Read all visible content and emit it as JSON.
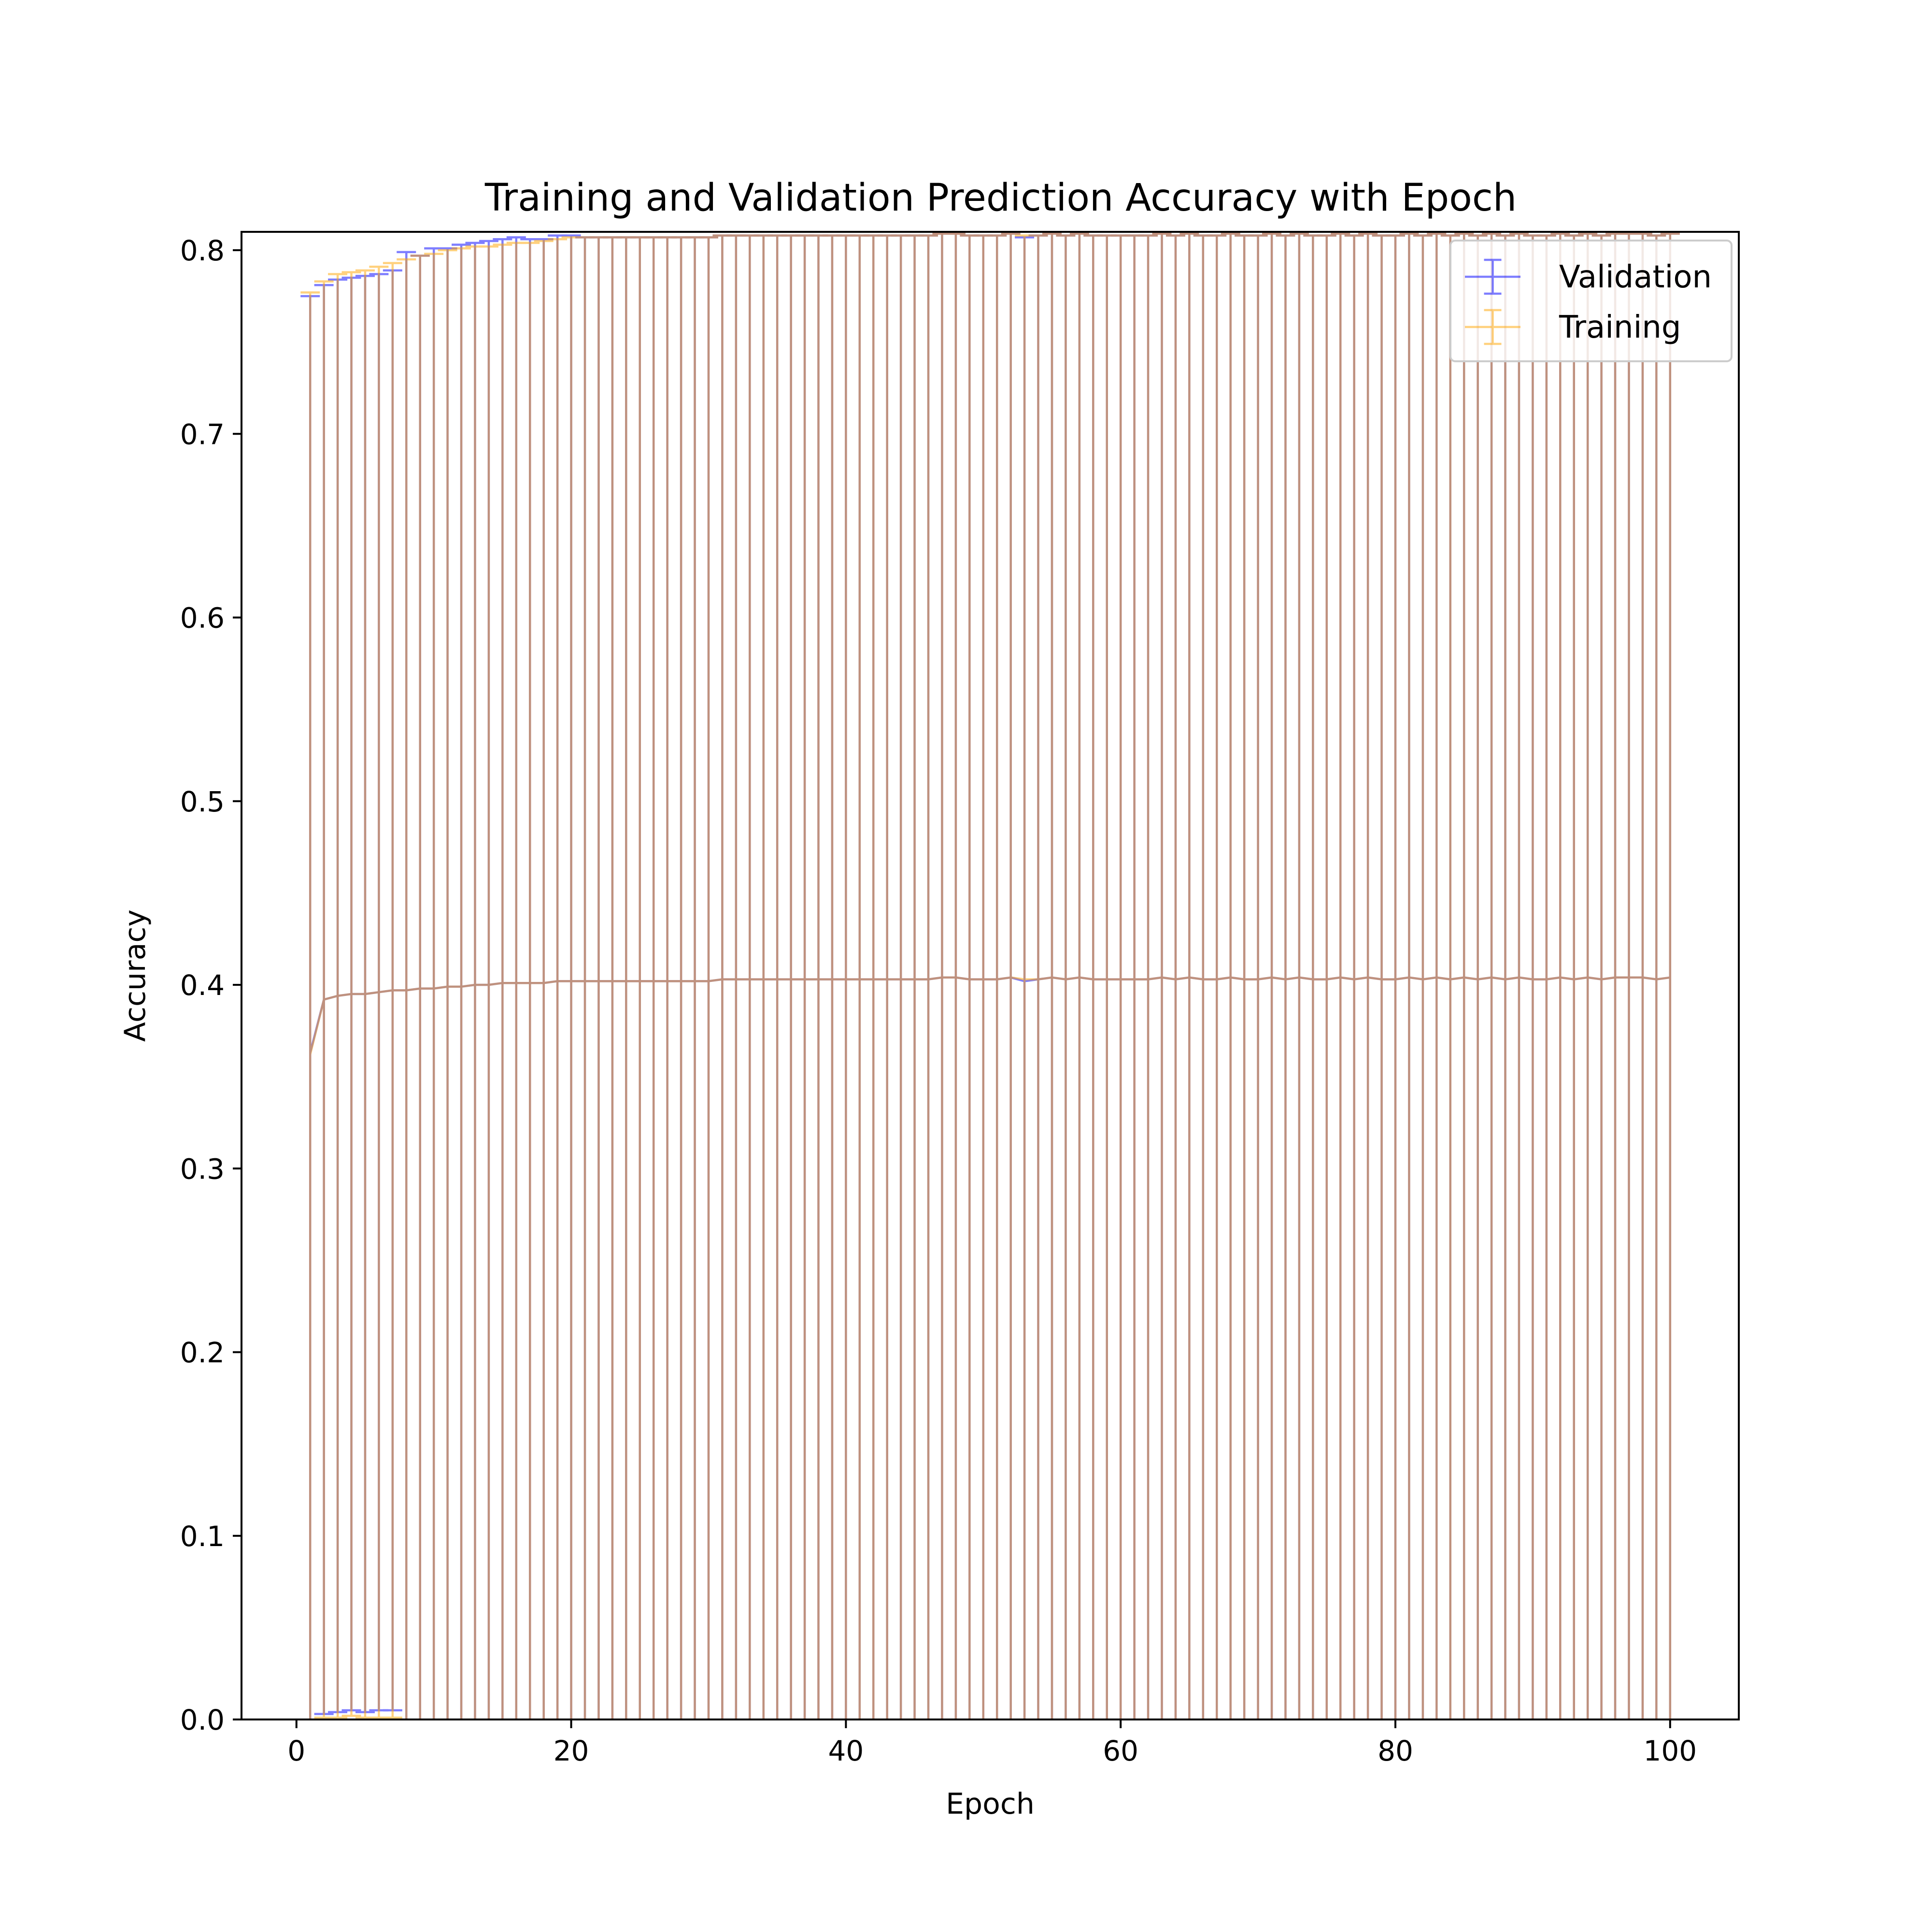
{
  "chart_data": {
    "type": "line",
    "title": "Training and Validation Prediction Accuracy with Epoch",
    "xlabel": "Epoch",
    "ylabel": "Accuracy",
    "xlim": [
      -4,
      105
    ],
    "ylim": [
      0.0,
      0.81
    ],
    "x_ticks": [
      "0",
      "20",
      "40",
      "60",
      "80",
      "100"
    ],
    "y_ticks": [
      "0.0",
      "0.1",
      "0.2",
      "0.3",
      "0.4",
      "0.5",
      "0.6",
      "0.7",
      "0.8"
    ],
    "grid": false,
    "legend_position": "top-right",
    "error_bars": true,
    "x": [
      1,
      2,
      3,
      4,
      5,
      6,
      7,
      8,
      9,
      10,
      11,
      12,
      13,
      14,
      15,
      16,
      17,
      18,
      19,
      20,
      21,
      22,
      23,
      24,
      25,
      26,
      27,
      28,
      29,
      30,
      31,
      32,
      33,
      34,
      35,
      36,
      37,
      38,
      39,
      40,
      41,
      42,
      43,
      44,
      45,
      46,
      47,
      48,
      49,
      50,
      51,
      52,
      53,
      54,
      55,
      56,
      57,
      58,
      59,
      60,
      61,
      62,
      63,
      64,
      65,
      66,
      67,
      68,
      69,
      70,
      71,
      72,
      73,
      74,
      75,
      76,
      77,
      78,
      79,
      80,
      81,
      82,
      83,
      84,
      85,
      86,
      87,
      88,
      89,
      90,
      91,
      92,
      93,
      94,
      95,
      96,
      97,
      98,
      99,
      100
    ],
    "series": [
      {
        "name": "Validation",
        "color": "#0000ff",
        "values": [
          0.363,
          0.392,
          0.394,
          0.395,
          0.395,
          0.396,
          0.397,
          0.397,
          0.398,
          0.398,
          0.399,
          0.399,
          0.4,
          0.4,
          0.401,
          0.401,
          0.401,
          0.401,
          0.402,
          0.402,
          0.402,
          0.402,
          0.402,
          0.402,
          0.402,
          0.402,
          0.402,
          0.402,
          0.402,
          0.402,
          0.403,
          0.403,
          0.403,
          0.403,
          0.403,
          0.403,
          0.403,
          0.403,
          0.403,
          0.403,
          0.403,
          0.403,
          0.403,
          0.403,
          0.403,
          0.403,
          0.404,
          0.404,
          0.403,
          0.403,
          0.403,
          0.404,
          0.402,
          0.403,
          0.404,
          0.403,
          0.404,
          0.403,
          0.403,
          0.403,
          0.403,
          0.403,
          0.404,
          0.403,
          0.404,
          0.403,
          0.403,
          0.404,
          0.403,
          0.403,
          0.404,
          0.403,
          0.404,
          0.403,
          0.403,
          0.404,
          0.403,
          0.404,
          0.403,
          0.403,
          0.404,
          0.403,
          0.404,
          0.403,
          0.404,
          0.403,
          0.404,
          0.403,
          0.404,
          0.403,
          0.403,
          0.404,
          0.403,
          0.404,
          0.403,
          0.404,
          0.404,
          0.404,
          0.403,
          0.404
        ],
        "errors": [
          0.412,
          0.389,
          0.39,
          0.39,
          0.391,
          0.391,
          0.392,
          0.402,
          0.399,
          0.403,
          0.402,
          0.404,
          0.404,
          0.405,
          0.405,
          0.406,
          0.405,
          0.405,
          0.406,
          0.406,
          0.405,
          0.405,
          0.405,
          0.405,
          0.405,
          0.405,
          0.405,
          0.405,
          0.405,
          0.405,
          0.405,
          0.405,
          0.405,
          0.405,
          0.405,
          0.405,
          0.405,
          0.405,
          0.405,
          0.405,
          0.405,
          0.405,
          0.405,
          0.405,
          0.405,
          0.405,
          0.405,
          0.405,
          0.405,
          0.405,
          0.405,
          0.405,
          0.405,
          0.405,
          0.405,
          0.405,
          0.405,
          0.405,
          0.405,
          0.405,
          0.405,
          0.405,
          0.405,
          0.405,
          0.405,
          0.405,
          0.405,
          0.405,
          0.405,
          0.405,
          0.405,
          0.405,
          0.405,
          0.405,
          0.405,
          0.405,
          0.405,
          0.405,
          0.405,
          0.405,
          0.405,
          0.405,
          0.405,
          0.405,
          0.405,
          0.405,
          0.405,
          0.405,
          0.405,
          0.405,
          0.405,
          0.405,
          0.405,
          0.405,
          0.405,
          0.405,
          0.405,
          0.405,
          0.405,
          0.405
        ]
      },
      {
        "name": "Training",
        "color": "#ffa500",
        "values": [
          0.362,
          0.392,
          0.394,
          0.395,
          0.395,
          0.396,
          0.397,
          0.397,
          0.398,
          0.398,
          0.399,
          0.399,
          0.4,
          0.4,
          0.401,
          0.401,
          0.401,
          0.401,
          0.402,
          0.402,
          0.402,
          0.402,
          0.402,
          0.402,
          0.402,
          0.402,
          0.402,
          0.402,
          0.402,
          0.402,
          0.403,
          0.403,
          0.403,
          0.403,
          0.403,
          0.403,
          0.403,
          0.403,
          0.403,
          0.403,
          0.403,
          0.403,
          0.403,
          0.403,
          0.403,
          0.403,
          0.404,
          0.404,
          0.403,
          0.403,
          0.403,
          0.404,
          0.403,
          0.403,
          0.404,
          0.403,
          0.404,
          0.403,
          0.403,
          0.403,
          0.403,
          0.403,
          0.404,
          0.403,
          0.404,
          0.403,
          0.403,
          0.404,
          0.403,
          0.403,
          0.404,
          0.403,
          0.404,
          0.403,
          0.403,
          0.404,
          0.403,
          0.404,
          0.403,
          0.403,
          0.404,
          0.403,
          0.404,
          0.403,
          0.404,
          0.403,
          0.404,
          0.403,
          0.404,
          0.403,
          0.403,
          0.404,
          0.403,
          0.404,
          0.403,
          0.404,
          0.404,
          0.404,
          0.403,
          0.404
        ],
        "errors": [
          0.415,
          0.391,
          0.393,
          0.393,
          0.394,
          0.395,
          0.396,
          0.398,
          0.399,
          0.4,
          0.401,
          0.402,
          0.402,
          0.402,
          0.402,
          0.403,
          0.403,
          0.404,
          0.404,
          0.405,
          0.405,
          0.405,
          0.405,
          0.405,
          0.405,
          0.405,
          0.405,
          0.405,
          0.405,
          0.405,
          0.405,
          0.405,
          0.405,
          0.405,
          0.405,
          0.405,
          0.405,
          0.405,
          0.405,
          0.405,
          0.405,
          0.405,
          0.405,
          0.405,
          0.405,
          0.405,
          0.405,
          0.405,
          0.405,
          0.405,
          0.405,
          0.405,
          0.405,
          0.405,
          0.405,
          0.405,
          0.405,
          0.405,
          0.405,
          0.405,
          0.405,
          0.405,
          0.405,
          0.405,
          0.405,
          0.405,
          0.405,
          0.405,
          0.405,
          0.405,
          0.405,
          0.405,
          0.405,
          0.405,
          0.405,
          0.405,
          0.405,
          0.405,
          0.405,
          0.405,
          0.405,
          0.405,
          0.405,
          0.405,
          0.405,
          0.405,
          0.405,
          0.405,
          0.405,
          0.405,
          0.405,
          0.405,
          0.405,
          0.405,
          0.405,
          0.405,
          0.405,
          0.405,
          0.405,
          0.405
        ]
      }
    ]
  }
}
